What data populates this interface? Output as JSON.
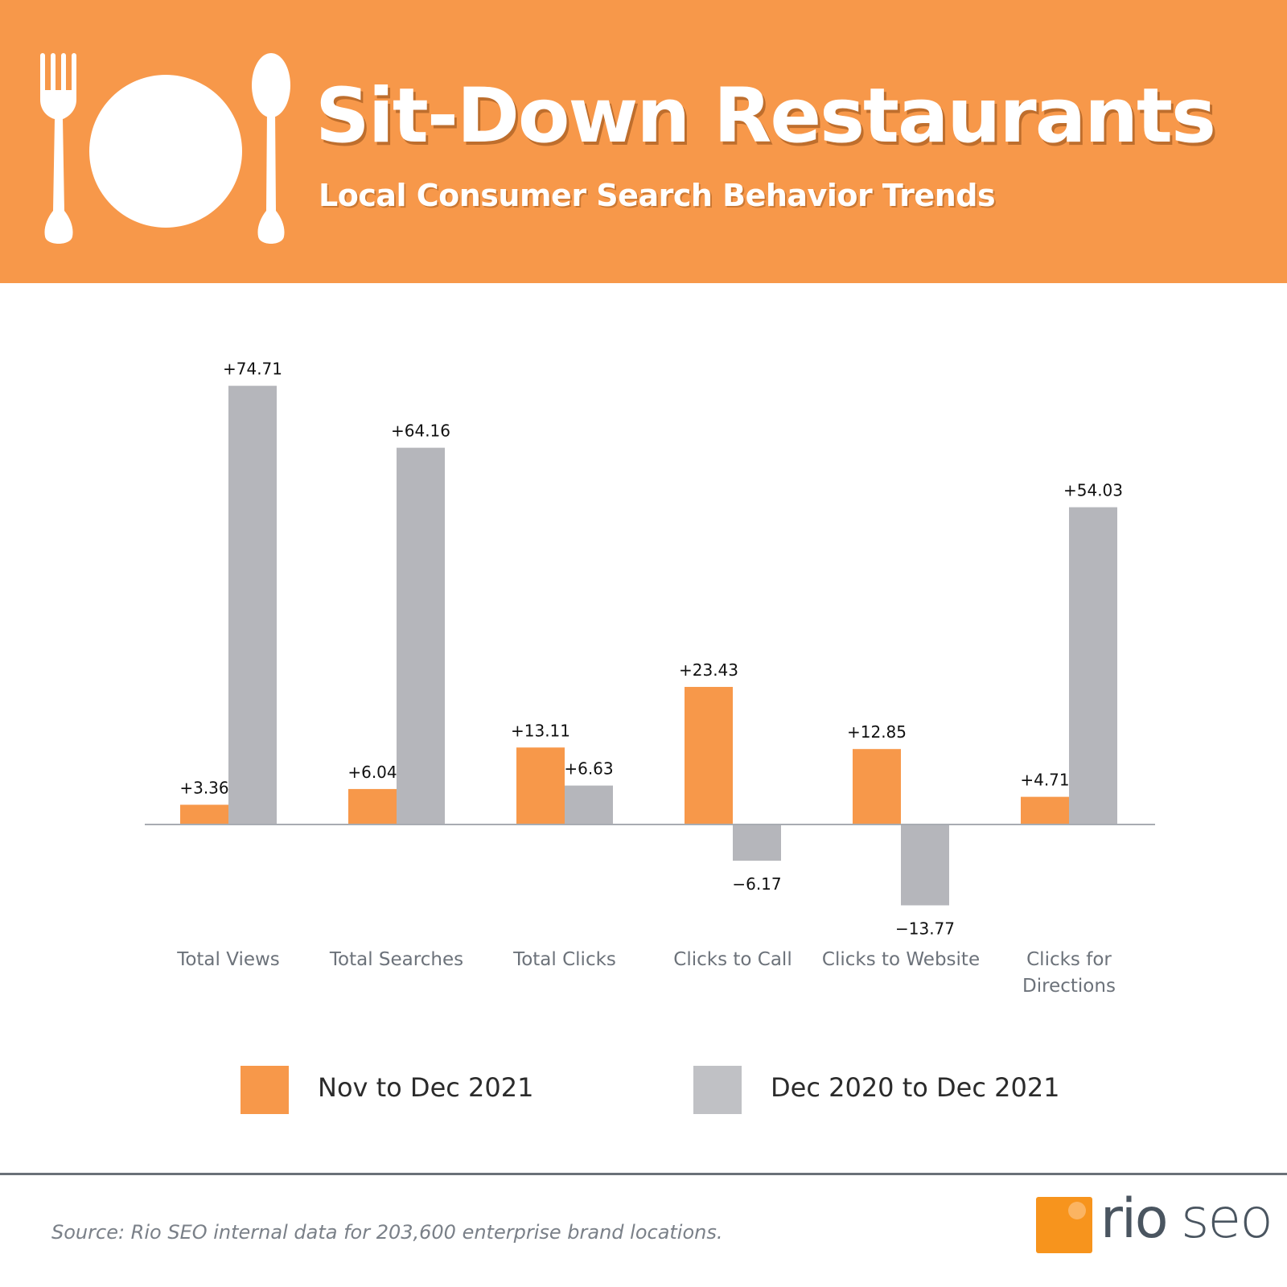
{
  "header": {
    "title": "Sit-Down Restaurants",
    "subtitle": "Local Consumer Search Behavior Trends",
    "icons": [
      "fork-icon",
      "plate-icon",
      "spoon-icon"
    ]
  },
  "chart_data": {
    "type": "bar",
    "categories": [
      [
        "Total Views"
      ],
      [
        "Total Searches"
      ],
      [
        "Total Clicks"
      ],
      [
        "Clicks to Call"
      ],
      [
        "Clicks to Website"
      ],
      [
        "Clicks for",
        "Directions"
      ]
    ],
    "series": [
      {
        "name": "Nov to Dec 2021",
        "color": "#f7984a",
        "values": [
          3.36,
          6.04,
          13.11,
          23.43,
          12.85,
          4.71
        ],
        "labels": [
          "+3.36",
          "+6.04",
          "+13.11",
          "+23.43",
          "+12.85",
          "+4.71"
        ]
      },
      {
        "name": "Dec 2020 to Dec 2021",
        "color": "#b5b6bb",
        "values": [
          74.71,
          64.16,
          6.63,
          -6.17,
          -13.77,
          54.03
        ],
        "labels": [
          "+74.71",
          "+64.16",
          "+6.63",
          "−6.17",
          "−13.77",
          "+54.03"
        ]
      }
    ],
    "title": "Sit-Down Restaurants",
    "xlabel": "",
    "ylabel": "",
    "ylim": [
      -14,
      75
    ],
    "grid": false,
    "legend_position": "bottom"
  },
  "legend": {
    "items": [
      {
        "label": "Nov to Dec 2021",
        "color": "#f7984a"
      },
      {
        "label": "Dec 2020 to Dec 2021",
        "color": "#c0c1c5"
      }
    ]
  },
  "footer": {
    "source": "Source: Rio SEO internal data for 203,600 enterprise brand locations.",
    "logo_rio": "rio",
    "logo_seo": "seo"
  }
}
